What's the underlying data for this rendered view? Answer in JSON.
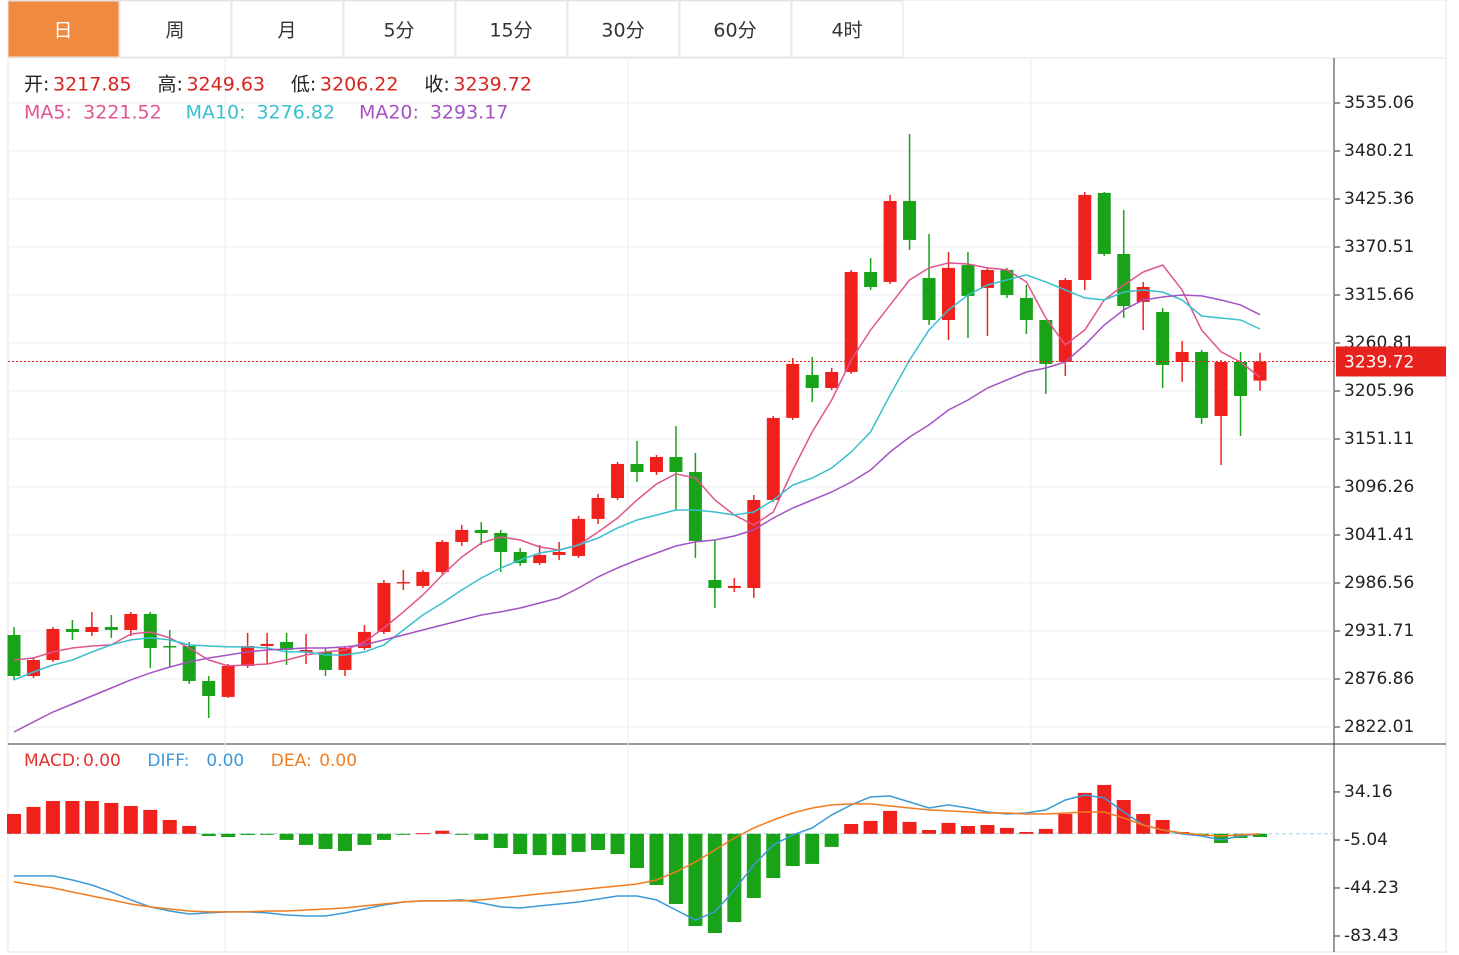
{
  "tabs": {
    "items": [
      "日",
      "周",
      "月",
      "5分",
      "15分",
      "30分",
      "60分",
      "4时"
    ],
    "active": 0
  },
  "chart_data": [
    {
      "type": "candlestick",
      "ohlc_labels": [
        "开:",
        "高:",
        "低:",
        "收:"
      ],
      "open": [
        2927.2,
        2880.3,
        2898.6,
        2934.0,
        2930.6,
        2936.3,
        2932.9,
        2951.2,
        2914.6,
        2914.6,
        2874.6,
        2856.4,
        2891.8,
        2914.6,
        2919.2,
        2907.8,
        2907.8,
        2887.2,
        2912.3,
        2930.6,
        2986.6,
        2983.2,
        2999.2,
        3033.5,
        3047.2,
        3043.7,
        3022.0,
        3009.4,
        3018.6,
        3017.5,
        3059.8,
        3083.7,
        3122.6,
        3113.4,
        3130.6,
        3113.4,
        2990.0,
        2980.9,
        2980.9,
        3081.4,
        3175.2,
        3224.3,
        3209.4,
        3227.7,
        3342.0,
        3330.6,
        3423.1,
        3335.1,
        3287.1,
        3350.0,
        3323.7,
        3344.3,
        3312.3,
        3287.1,
        3239.1,
        3332.8,
        3432.3,
        3362.5,
        3307.7,
        3296.3,
        3239.1,
        3250.6,
        3177.4,
        3239.1,
        3217.85
      ],
      "high": [
        2936.3,
        2902.0,
        2936.3,
        2944.3,
        2953.5,
        2950.0,
        2953.5,
        2953.5,
        2932.9,
        2919.2,
        2880.3,
        2894.0,
        2929.5,
        2929.5,
        2929.5,
        2928.3,
        2912.3,
        2914.6,
        2938.6,
        2990.0,
        3001.4,
        3001.4,
        3035.7,
        3052.9,
        3056.3,
        3047.2,
        3026.6,
        3030.0,
        3033.5,
        3063.2,
        3088.3,
        3124.9,
        3148.9,
        3132.9,
        3166.0,
        3135.2,
        3035.7,
        2992.3,
        3087.2,
        3177.4,
        3243.7,
        3244.9,
        3232.3,
        3344.3,
        3358.0,
        3430.0,
        3499.7,
        3385.4,
        3364.8,
        3364.8,
        3346.6,
        3346.6,
        3327.1,
        3287.1,
        3335.1,
        3433.4,
        3433.4,
        3412.8,
        3330.6,
        3300.8,
        3263.1,
        3252.9,
        3241.4,
        3250.6,
        3249.63
      ],
      "low": [
        2875.8,
        2878.0,
        2896.3,
        2921.5,
        2926.0,
        2923.8,
        2926.0,
        2889.5,
        2889.5,
        2871.2,
        2832.3,
        2855.2,
        2889.5,
        2894.0,
        2892.9,
        2894.0,
        2880.3,
        2880.3,
        2910.0,
        2928.3,
        2978.6,
        2980.9,
        2996.9,
        3028.9,
        3030.0,
        2999.2,
        3006.0,
        3007.2,
        3012.9,
        3015.2,
        3054.0,
        3081.4,
        3102.0,
        3110.0,
        3070.0,
        3015.2,
        2958.0,
        2976.3,
        2969.5,
        3079.2,
        3173.0,
        3193.4,
        3207.1,
        3225.4,
        3321.4,
        3328.3,
        3367.1,
        3281.4,
        3264.3,
        3266.6,
        3268.9,
        3312.3,
        3271.2,
        3202.6,
        3223.1,
        3321.4,
        3360.3,
        3289.4,
        3275.7,
        3209.4,
        3216.3,
        3168.3,
        3121.4,
        3154.6,
        3206.22
      ],
      "close": [
        2880.3,
        2898.6,
        2934.0,
        2930.6,
        2936.3,
        2932.9,
        2951.2,
        2912.3,
        2913.5,
        2874.6,
        2857.5,
        2891.8,
        2914.6,
        2916.9,
        2910.0,
        2910.0,
        2887.2,
        2912.3,
        2930.6,
        2986.6,
        2987.7,
        2999.2,
        3033.5,
        3047.2,
        3043.7,
        3022.0,
        3009.4,
        3018.6,
        3022.0,
        3059.8,
        3083.7,
        3122.6,
        3113.4,
        3130.6,
        3113.4,
        3034.6,
        2980.9,
        2983.2,
        3081.4,
        3175.2,
        3236.9,
        3209.4,
        3227.7,
        3342.0,
        3324.8,
        3423.1,
        3378.6,
        3287.1,
        3346.6,
        3314.6,
        3344.3,
        3315.7,
        3287.1,
        3236.9,
        3332.8,
        3430.0,
        3362.5,
        3303.1,
        3324.8,
        3235.7,
        3250.6,
        3175.2,
        3239.1,
        3200.3,
        3239.72
      ],
      "up_color": "#f0201d",
      "down_color": "#18a318",
      "last_price_color": "#e8231e",
      "series": [
        {
          "name": "MA5:",
          "color": "#e0558f",
          "values": [
            2898.6,
            2900.9,
            2907.8,
            2912.3,
            2914.6,
            2915.8,
            2928.3,
            2930.6,
            2923.8,
            2912.3,
            2898.6,
            2891.8,
            2892.9,
            2894.0,
            2898.6,
            2904.3,
            2907.8,
            2910.0,
            2919.2,
            2935.2,
            2953.5,
            2972.9,
            2995.7,
            3016.3,
            3032.3,
            3039.2,
            3035.7,
            3027.7,
            3024.3,
            3030.0,
            3044.9,
            3060.9,
            3081.4,
            3099.7,
            3111.2,
            3106.6,
            3081.4,
            3064.3,
            3052.9,
            3067.7,
            3115.7,
            3159.2,
            3195.7,
            3241.4,
            3275.7,
            3304.3,
            3332.8,
            3346.6,
            3352.3,
            3351.1,
            3346.6,
            3344.3,
            3330.6,
            3289.4,
            3258.6,
            3275.7,
            3310.0,
            3327.1,
            3342.0,
            3350.0,
            3321.4,
            3275.7,
            3250.6,
            3239.1,
            3221.52
          ]
        },
        {
          "name": "MA10:",
          "color": "#38c0cf",
          "values": [
            2875.8,
            2884.9,
            2892.9,
            2898.6,
            2907.8,
            2915.8,
            2921.5,
            2923.8,
            2921.5,
            2915.8,
            2914.6,
            2913.5,
            2913.5,
            2912.3,
            2907.8,
            2907.8,
            2904.3,
            2904.3,
            2907.8,
            2915.8,
            2932.9,
            2950.0,
            2963.7,
            2978.6,
            2992.3,
            3003.7,
            3012.9,
            3020.9,
            3024.3,
            3030.0,
            3038.0,
            3049.5,
            3058.6,
            3064.3,
            3070.0,
            3070.0,
            3067.7,
            3064.3,
            3067.7,
            3081.4,
            3098.6,
            3106.6,
            3118.0,
            3136.3,
            3159.2,
            3201.4,
            3241.4,
            3275.7,
            3298.6,
            3315.7,
            3327.1,
            3332.8,
            3338.6,
            3330.6,
            3321.4,
            3312.3,
            3310.0,
            3319.1,
            3321.4,
            3319.1,
            3310.0,
            3291.7,
            3289.4,
            3287.1,
            3276.82
          ]
        },
        {
          "name": "MA20:",
          "color": "#a452c4",
          "values": [
            2816.3,
            2827.8,
            2839.2,
            2848.3,
            2857.5,
            2866.6,
            2875.8,
            2883.8,
            2890.6,
            2896.3,
            2900.9,
            2904.3,
            2907.8,
            2910.0,
            2911.2,
            2912.3,
            2912.3,
            2913.5,
            2915.8,
            2921.5,
            2927.2,
            2932.9,
            2938.6,
            2944.3,
            2950.0,
            2953.5,
            2958.0,
            2963.7,
            2969.5,
            2980.9,
            2993.5,
            3003.7,
            3012.9,
            3020.9,
            3028.9,
            3033.5,
            3035.7,
            3040.3,
            3047.2,
            3060.9,
            3072.3,
            3081.4,
            3090.6,
            3102.0,
            3115.7,
            3136.3,
            3153.4,
            3167.2,
            3184.3,
            3195.7,
            3209.4,
            3218.6,
            3227.7,
            3232.3,
            3239.1,
            3258.6,
            3281.4,
            3298.6,
            3310.0,
            3313.4,
            3315.7,
            3314.6,
            3310.0,
            3304.3,
            3293.17
          ]
        }
      ],
      "ylim": [
        2802.6,
        3584.2
      ],
      "yticks": [
        2822.01,
        2876.86,
        2931.71,
        2986.56,
        3041.41,
        3096.26,
        3151.11,
        3205.96,
        3260.81,
        3315.66,
        3370.51,
        3425.36,
        3480.21,
        3535.06
      ],
      "grid": true
    },
    {
      "type": "macd",
      "series": [
        {
          "name": "MACD:",
          "kind": "bar",
          "color": "#e3312b",
          "up_color": "#f0201d",
          "down_color": "#18a318",
          "legend": {
            "value": 0,
            "label": "0.00"
          },
          "values": [
            16.2,
            21.9,
            26.8,
            26.8,
            26.8,
            25.2,
            22.7,
            19.5,
            11.3,
            6.4,
            -1.8,
            -2.6,
            -1.0,
            -0.8,
            -5.0,
            -9.1,
            -12.4,
            -14.0,
            -9.1,
            -5.0,
            -0.8,
            0.5,
            2.5,
            -0.5,
            -5.0,
            -11.6,
            -16.5,
            -17.4,
            -17.4,
            -14.8,
            -13.2,
            -16.5,
            -27.9,
            -41.8,
            -57.3,
            -75.3,
            -81.0,
            -72.0,
            -52.4,
            -36.1,
            -26.3,
            -24.6,
            -10.7,
            8.0,
            10.5,
            18.7,
            9.7,
            3.1,
            8.9,
            6.4,
            7.2,
            4.8,
            1.5,
            4.0,
            16.2,
            33.4,
            39.9,
            27.6,
            16.2,
            11.3,
            1.5,
            -1.8,
            -7.5,
            -3.4,
            -2.6
          ]
        },
        {
          "name": "DIFF:",
          "kind": "line",
          "color": "#3d9ad8",
          "legend": {
            "value": 0,
            "label": "0.00"
          },
          "values": [
            -34.4,
            -34.4,
            -34.4,
            -37.7,
            -41.8,
            -47.5,
            -54.0,
            -59.7,
            -63.0,
            -65.5,
            -64.6,
            -63.8,
            -63.8,
            -64.6,
            -66.3,
            -67.1,
            -67.1,
            -64.6,
            -61.4,
            -58.1,
            -55.7,
            -54.8,
            -54.8,
            -54.0,
            -56.5,
            -59.7,
            -60.6,
            -58.9,
            -57.3,
            -55.7,
            -53.2,
            -50.8,
            -50.8,
            -54.0,
            -62.2,
            -70.4,
            -63.8,
            -45.9,
            -25.4,
            -9.1,
            -0.9,
            4.8,
            15.4,
            23.6,
            30.1,
            30.9,
            26.0,
            21.1,
            23.6,
            21.1,
            17.8,
            16.2,
            17.0,
            19.5,
            27.6,
            31.7,
            29.3,
            17.8,
            7.2,
            3.1,
            -0.1,
            -1.8,
            -5.0,
            -1.8,
            -0.1
          ]
        },
        {
          "name": "DEA:",
          "kind": "line",
          "color": "#f07c20",
          "legend": {
            "value": 0,
            "label": "0.00"
          },
          "values": [
            -39.3,
            -41.8,
            -44.2,
            -47.5,
            -50.8,
            -54.0,
            -57.3,
            -59.7,
            -61.4,
            -63.0,
            -63.8,
            -63.8,
            -63.8,
            -63.0,
            -63.0,
            -62.2,
            -61.4,
            -60.6,
            -58.9,
            -57.3,
            -55.7,
            -54.8,
            -54.8,
            -54.8,
            -54.0,
            -52.4,
            -50.8,
            -49.1,
            -47.5,
            -45.9,
            -44.2,
            -42.6,
            -41.0,
            -37.7,
            -31.2,
            -23.0,
            -13.2,
            -3.4,
            4.8,
            11.3,
            17.0,
            21.1,
            23.6,
            24.4,
            24.4,
            22.7,
            21.1,
            19.5,
            18.7,
            17.8,
            17.0,
            17.0,
            16.2,
            16.2,
            17.0,
            17.8,
            17.8,
            12.9,
            7.2,
            3.1,
            0.7,
            -0.9,
            -1.8,
            -0.9,
            -0.1
          ]
        }
      ],
      "ylim": [
        -96.5,
        72.5
      ],
      "yticks": [
        -83.43,
        -44.23,
        -5.04,
        34.16
      ]
    }
  ]
}
